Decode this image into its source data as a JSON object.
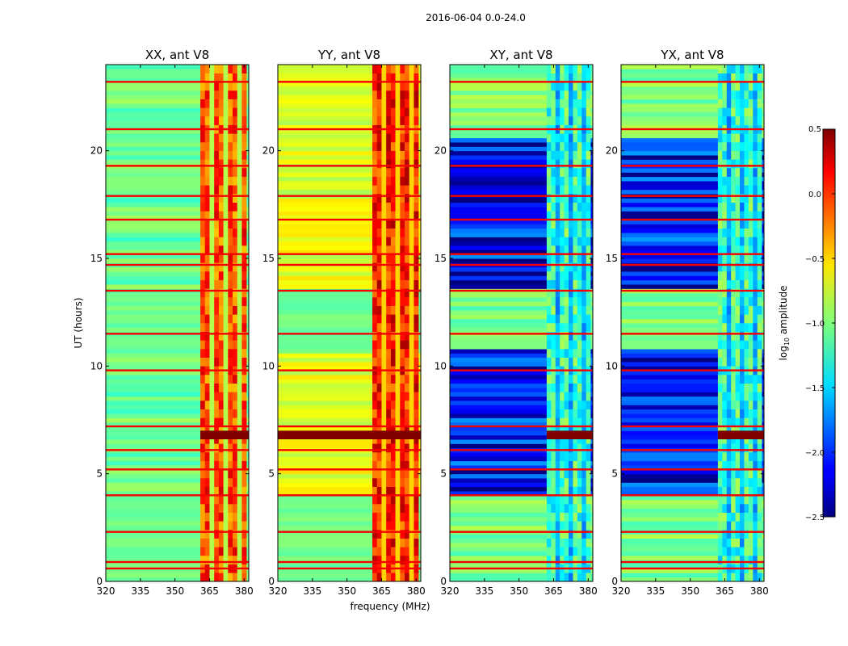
{
  "chart_data": {
    "type": "heatmap",
    "suptitle": "2016-06-04 0.0-24.0",
    "xlabel": "frequency (MHz)",
    "ylabel": "UT (hours)",
    "xlim": [
      320,
      382
    ],
    "ylim": [
      0,
      24
    ],
    "xticks": [
      "320",
      "335",
      "350",
      "365",
      "380"
    ],
    "yticks": [
      "0",
      "5",
      "10",
      "15",
      "20"
    ],
    "xtick_values": [
      320,
      335,
      350,
      365,
      380
    ],
    "ytick_values": [
      0,
      5,
      10,
      15,
      20
    ],
    "colorbar": {
      "label": "log10 amplitude",
      "label_base": "log",
      "label_sub": "10",
      "label_rest": " amplitude",
      "range": [
        -2.5,
        0.5
      ],
      "ticks": [
        "0.5",
        "0.0",
        "−0.5",
        "−1.0",
        "−1.5",
        "−2.0",
        "−2.5"
      ],
      "tick_values": [
        0.5,
        0.0,
        -0.5,
        -1.0,
        -1.5,
        -2.0,
        -2.5
      ],
      "colormap": "jet"
    },
    "panels": [
      {
        "name": "xx",
        "title": "XX, ant V8",
        "kind": "parallel",
        "base_level": -1.05,
        "rfi_band_mhz": [
          361,
          381
        ],
        "rfi_level": -0.1,
        "event_hours": [
          6.6,
          7.0
        ],
        "event_level": 0.5
      },
      {
        "name": "yy",
        "title": "YY, ant V8",
        "kind": "parallel",
        "base_level": -0.7,
        "rfi_band_mhz": [
          361,
          381
        ],
        "rfi_level": 0.05,
        "event_hours": [
          6.6,
          7.0
        ],
        "event_level": 0.5
      },
      {
        "name": "xy",
        "title": "XY, ant V8",
        "kind": "cross",
        "base_level": -2.1,
        "rfi_band_mhz": [
          362,
          381
        ],
        "rfi_level": -1.2,
        "event_hours": [
          6.6,
          7.0
        ],
        "event_level": 0.5
      },
      {
        "name": "yx",
        "title": "YX, ant V8",
        "kind": "cross",
        "base_level": -2.1,
        "rfi_band_mhz": [
          362,
          381
        ],
        "rfi_level": -1.2,
        "event_hours": [
          6.6,
          7.0
        ],
        "event_level": 0.5
      }
    ],
    "flagged_hours": [
      0.6,
      0.9,
      2.3,
      4.0,
      5.2,
      6.1,
      7.2,
      9.8,
      11.5,
      13.5,
      14.7,
      15.2,
      16.8,
      17.9,
      19.3,
      21.0,
      23.2
    ]
  }
}
